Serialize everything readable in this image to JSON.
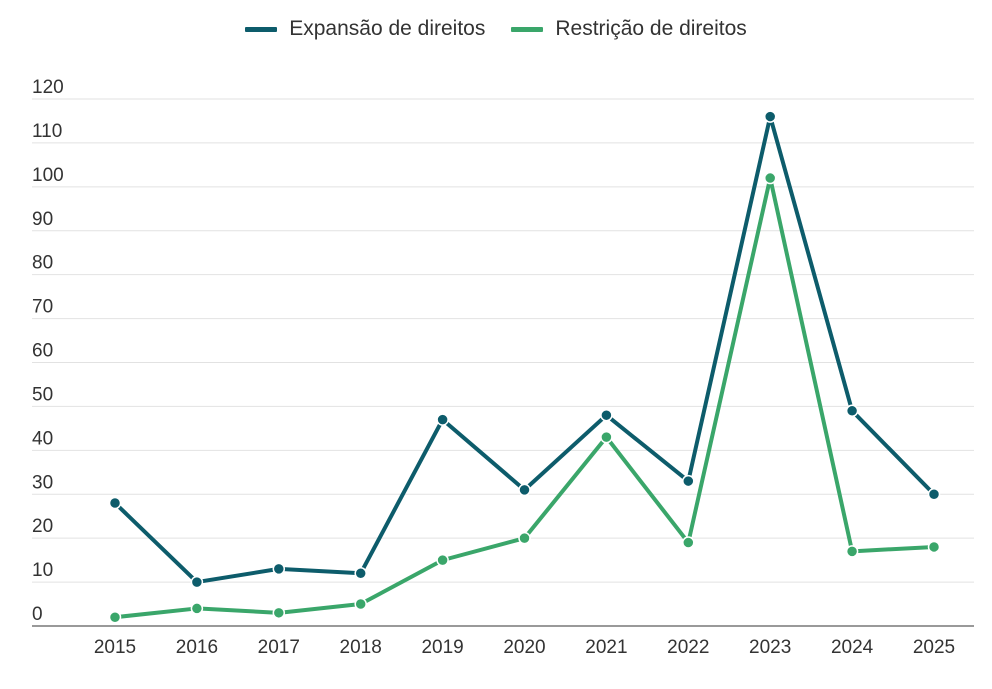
{
  "chart_data": {
    "type": "line",
    "x": [
      "2015",
      "2016",
      "2017",
      "2018",
      "2019",
      "2020",
      "2021",
      "2022",
      "2023",
      "2024",
      "2025"
    ],
    "series": [
      {
        "name": "Expansão de direitos",
        "color": "#0d5c6b",
        "values": [
          28,
          10,
          13,
          12,
          47,
          31,
          48,
          33,
          116,
          49,
          30
        ]
      },
      {
        "name": "Restrição de direitos",
        "color": "#3aa66a",
        "values": [
          2,
          4,
          3,
          5,
          15,
          20,
          43,
          19,
          102,
          17,
          18
        ]
      }
    ],
    "y_ticks": [
      "0",
      "10",
      "20",
      "30",
      "40",
      "50",
      "60",
      "70",
      "80",
      "90",
      "100",
      "110",
      "120"
    ],
    "ylim": [
      0,
      120
    ],
    "grid": true,
    "legend_position": "top-center",
    "title": "",
    "xlabel": "",
    "ylabel": ""
  }
}
